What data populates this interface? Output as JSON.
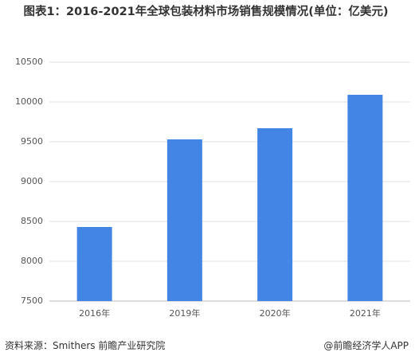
{
  "chart_data": {
    "type": "bar",
    "title": "图表1：2016-2021年全球包装材料市场销售规模情况(单位：亿美元)",
    "categories": [
      "2016年",
      "2019年",
      "2020年",
      "2021年"
    ],
    "values": [
      8430,
      9530,
      9670,
      10090
    ],
    "color": "#4285e4",
    "ylim": [
      7500,
      10500
    ],
    "yticks": [
      7500,
      8000,
      8500,
      9000,
      9500,
      10000,
      10500
    ],
    "grid": true
  },
  "footer": {
    "source": "资料来源：Smithers 前瞻产业研究院",
    "brand": "@前瞻经济学人APP"
  }
}
